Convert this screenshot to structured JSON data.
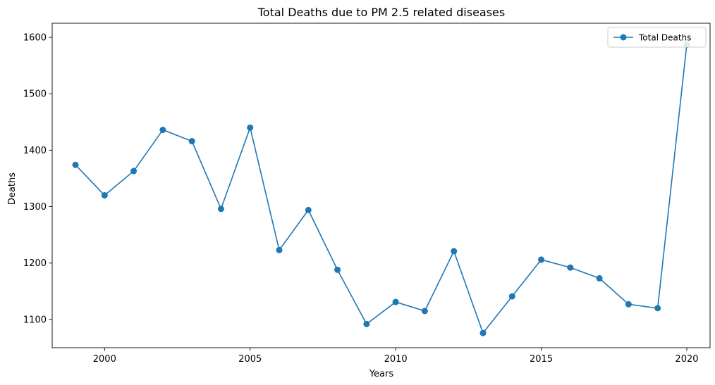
{
  "chart_data": {
    "type": "line",
    "title": "Total Deaths due to PM 2.5 related diseases",
    "xlabel": "Years",
    "ylabel": "Deaths",
    "xlim": [
      1998.2,
      2020.8
    ],
    "ylim": [
      1050,
      1625
    ],
    "xticks": [
      2000,
      2005,
      2010,
      2015,
      2020
    ],
    "yticks": [
      1100,
      1200,
      1300,
      1400,
      1500,
      1600
    ],
    "grid": false,
    "legend_position": "top-right",
    "series": [
      {
        "name": "Total Deaths",
        "color": "#1f77b4",
        "marker": "circle",
        "x": [
          1999,
          2000,
          2001,
          2002,
          2003,
          2004,
          2005,
          2006,
          2007,
          2008,
          2009,
          2010,
          2011,
          2012,
          2013,
          2014,
          2015,
          2016,
          2017,
          2018,
          2019,
          2020
        ],
        "y": [
          1374,
          1320,
          1363,
          1436,
          1416,
          1296,
          1440,
          1223,
          1294,
          1188,
          1092,
          1131,
          1115,
          1221,
          1076,
          1141,
          1206,
          1192,
          1173,
          1127,
          1120,
          1587
        ]
      }
    ]
  }
}
